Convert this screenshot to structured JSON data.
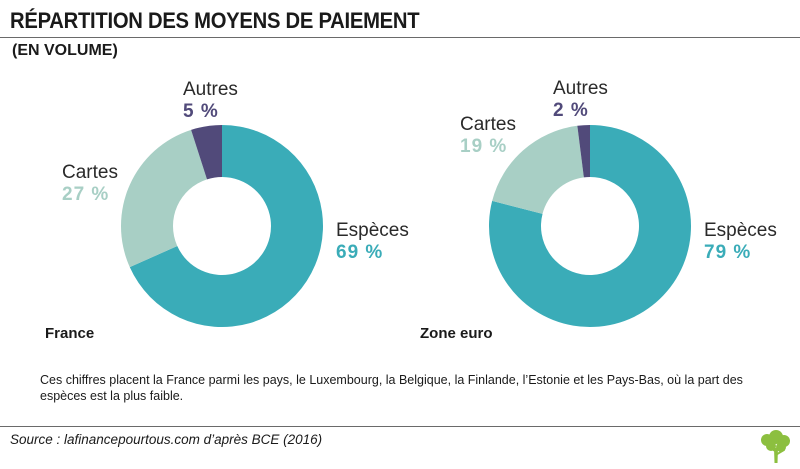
{
  "title": "RÉPARTITION DES MOYENS DE PAIEMENT",
  "subtitle": "(EN VOLUME)",
  "colors": {
    "especes": "#3aacb8",
    "cartes": "#a8cfc5",
    "autres": "#514a7a"
  },
  "chart_data": [
    {
      "type": "pie",
      "region": "France",
      "slices": [
        {
          "label": "Espèces",
          "value": 69,
          "value_label": "69 %",
          "color_key": "especes"
        },
        {
          "label": "Cartes",
          "value": 27,
          "value_label": "27 %",
          "color_key": "cartes"
        },
        {
          "label": "Autres",
          "value": 5,
          "value_label": "5 %",
          "color_key": "autres"
        }
      ]
    },
    {
      "type": "pie",
      "region": "Zone euro",
      "slices": [
        {
          "label": "Espèces",
          "value": 79,
          "value_label": "79 %",
          "color_key": "especes"
        },
        {
          "label": "Cartes",
          "value": 19,
          "value_label": "19 %",
          "color_key": "cartes"
        },
        {
          "label": "Autres",
          "value": 2,
          "value_label": "2 %",
          "color_key": "autres"
        }
      ]
    }
  ],
  "note": "Ces chiffres placent la France parmi les pays, le Luxembourg, la Belgique, la Finlande, l’Estonie et les Pays-Bas, où la part des espèces est la plus faible.",
  "source": "Source : lafinancepourtous.com d’après BCE (2016)",
  "logo_icon": "tree-icon"
}
